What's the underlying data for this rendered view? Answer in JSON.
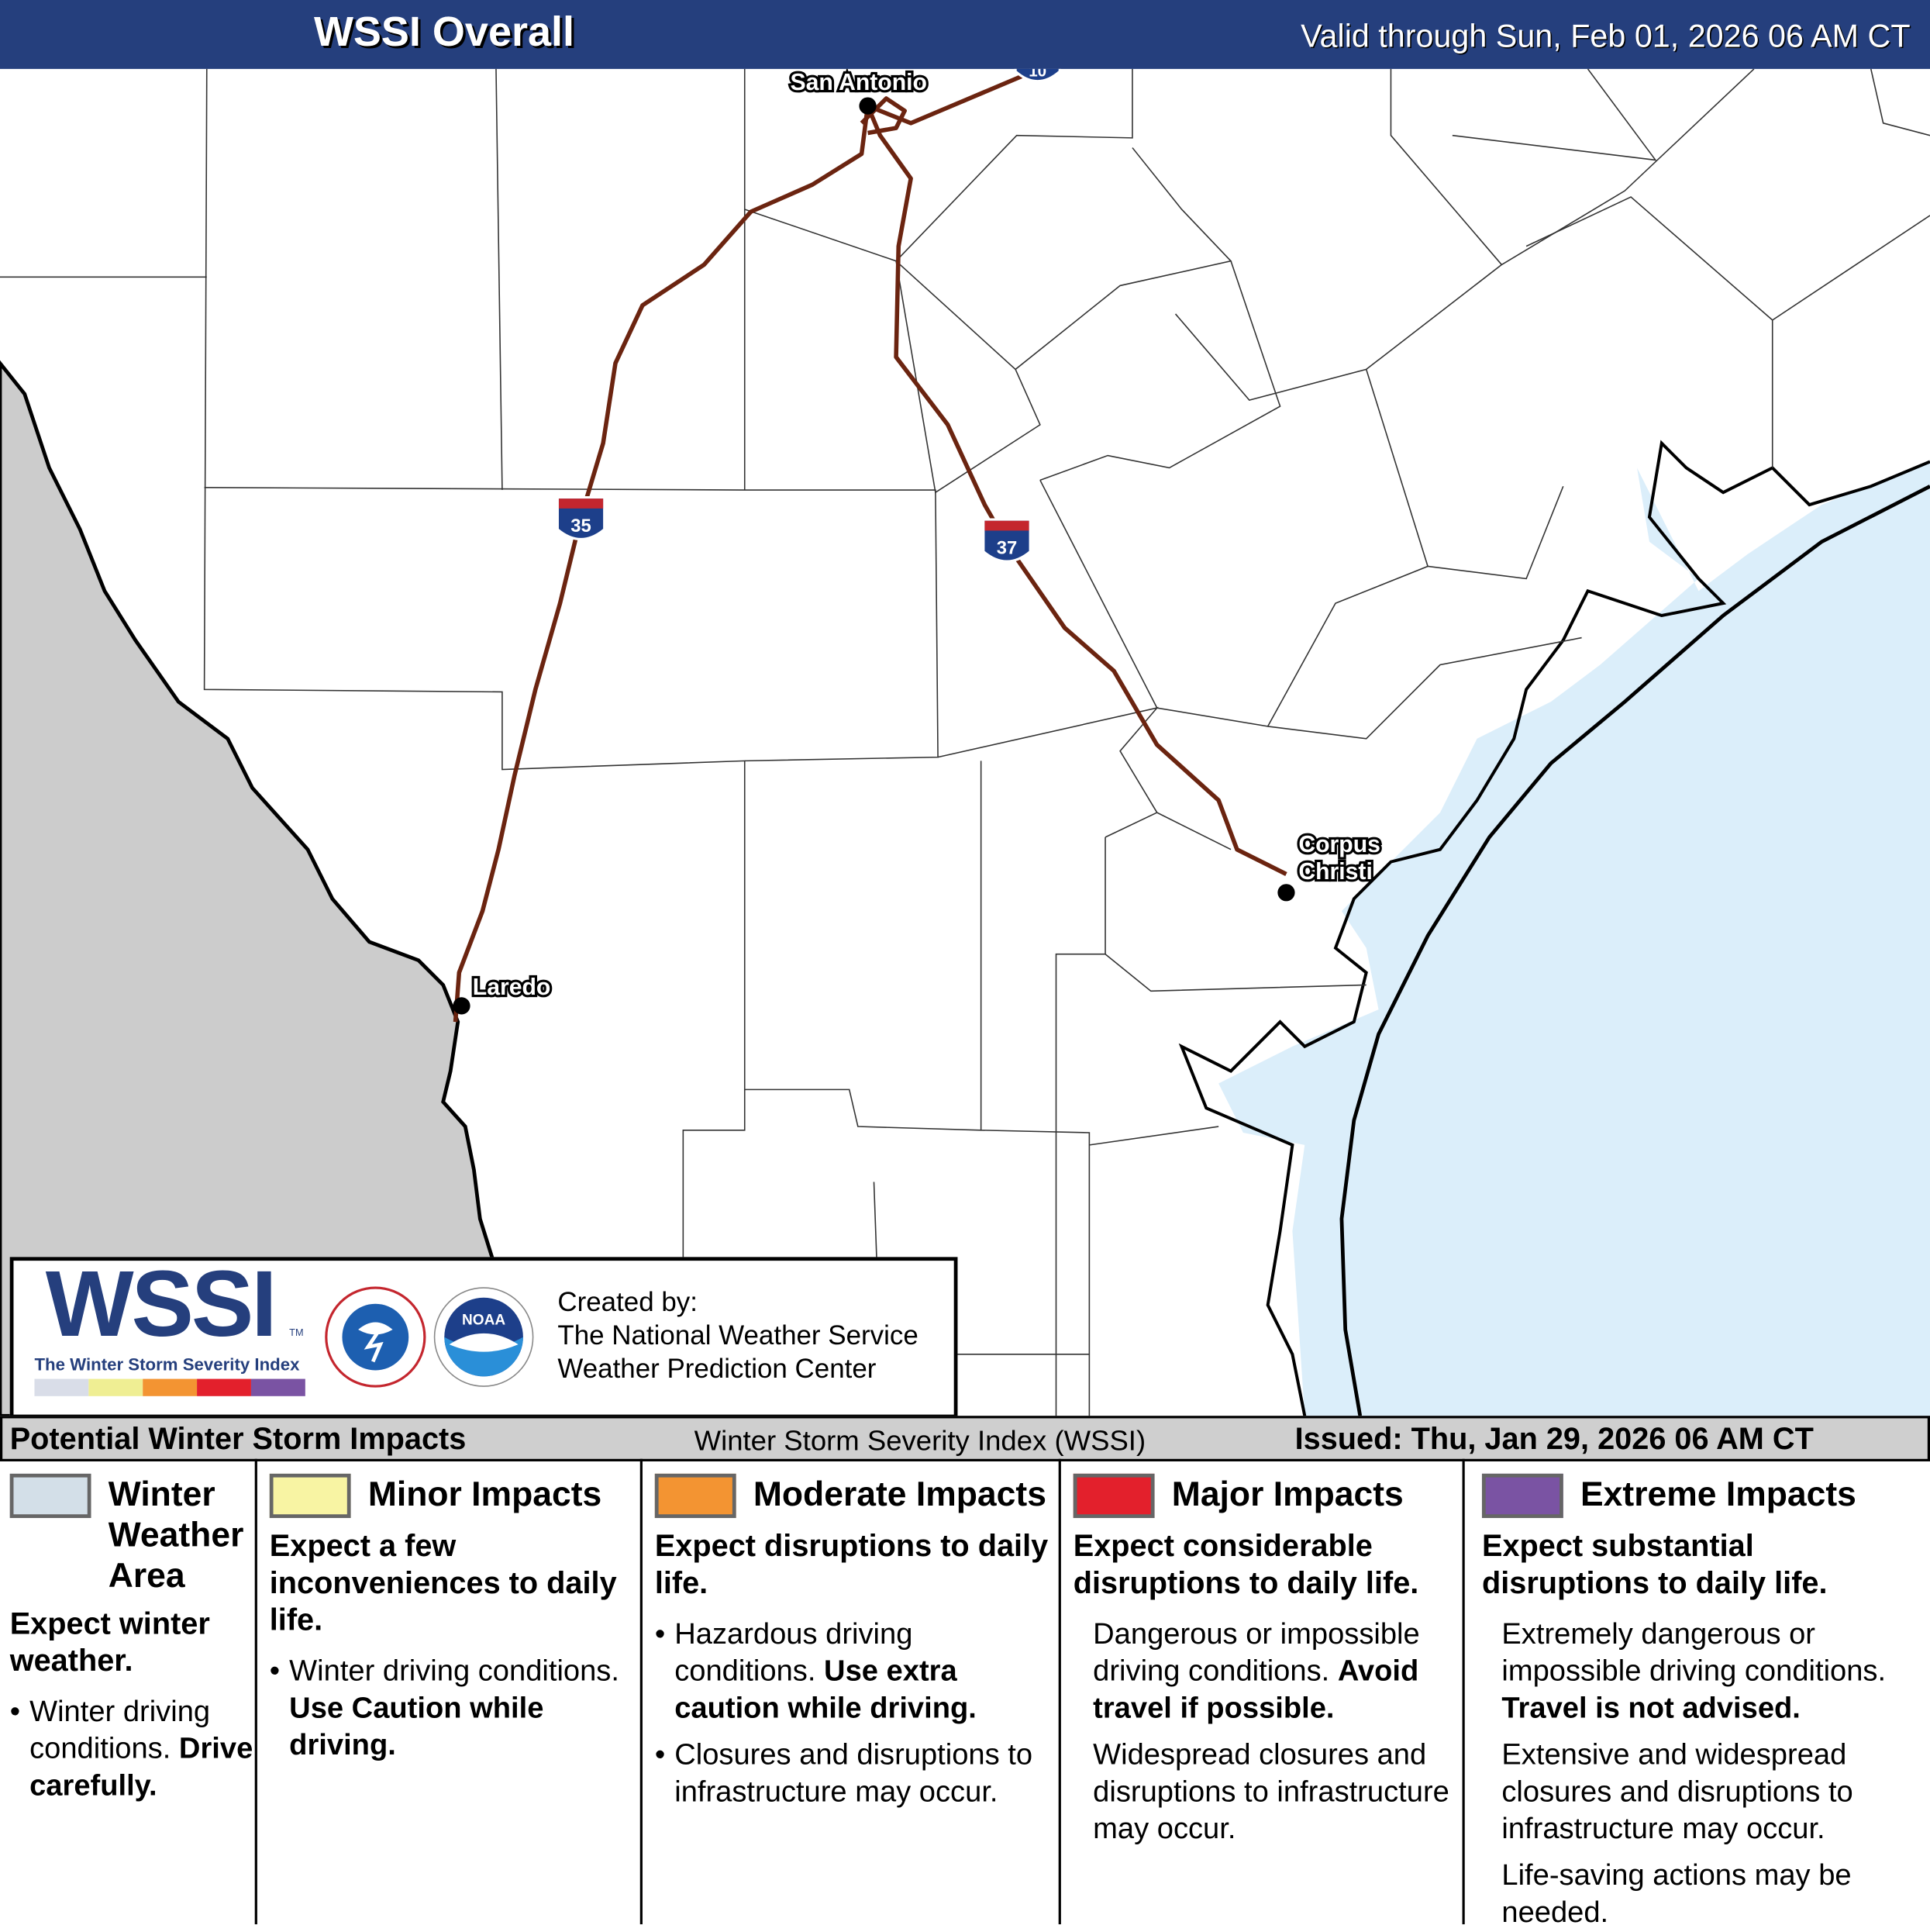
{
  "header": {
    "title": "WSSI Overall",
    "valid": "Valid through Sun, Feb 01, 2026 06 AM CT"
  },
  "map": {
    "cities": [
      "San Antonio",
      "Corpus Christi",
      "Laredo"
    ],
    "corpus_line1": "Corpus",
    "corpus_line2": "Christi",
    "highways": [
      "35",
      "37",
      "10"
    ],
    "colors": {
      "mexico": "#cccccc",
      "water": "#dbeefa",
      "highway": "#6b2410",
      "land": "#ffffff"
    }
  },
  "logo": {
    "wssi": "WSSI",
    "tagline": "The Winter Storm Severity Index",
    "tm": "TM",
    "nws_text": "NATIONAL WEATHER SERVICE",
    "noaa_text": "NOAA",
    "scale_colors": [
      "#d9dde8",
      "#efee93",
      "#f39432",
      "#e3202c",
      "#7a53a3"
    ]
  },
  "created": {
    "line1": "Created by:",
    "line2": "The National Weather Service",
    "line3": "Weather Prediction Center"
  },
  "strip": {
    "left": "Potential Winter Storm Impacts",
    "center": "Winter Storm Severity Index (WSSI)",
    "right": "Issued: Thu, Jan 29, 2026 06 AM CT"
  },
  "legend": [
    {
      "title": "Winter Weather Area",
      "color": "#d3dfe8",
      "summary": "Expect winter weather.",
      "bullet": "Winter driving conditions.",
      "bullet_bold": "Drive carefully."
    },
    {
      "title": "Minor Impacts",
      "color": "#f8f4a3",
      "summary": "Expect a few inconveniences to daily life.",
      "bullet": "Winter driving conditions.",
      "bullet_bold": "Use Caution while driving."
    },
    {
      "title": "Moderate Impacts",
      "color": "#f39432",
      "summary": "Expect disruptions to daily life.",
      "bullet": "Hazardous driving conditions.",
      "bullet_bold": "Use extra caution while driving.",
      "bullet2": "Closures and disruptions to infrastructure may occur."
    },
    {
      "title": "Major Impacts",
      "color": "#e3202c",
      "summary": "Expect considerable disruptions to daily life.",
      "text1": "Dangerous or impossible driving conditions.",
      "text1_bold": "Avoid travel if possible.",
      "text2": "Widespread closures and disruptions to infrastructure may occur."
    },
    {
      "title": "Extreme Impacts",
      "color": "#7a53a3",
      "summary": "Expect substantial disruptions to daily life.",
      "text1": "Extremely dangerous or impossible driving conditions.",
      "text1_bold": "Travel is not advised.",
      "text2": "Extensive and widespread closures and disruptions to infrastructure may occur.",
      "text3": "Life-saving actions may be needed."
    }
  ]
}
